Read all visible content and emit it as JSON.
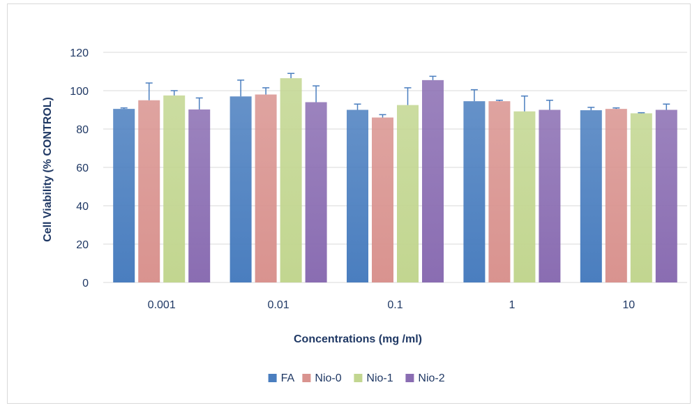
{
  "chart_data": {
    "type": "bar",
    "title": "",
    "xlabel": "Concentrations (mg /ml)",
    "ylabel": "Cell Viability (% CONTROL)",
    "ylim": [
      0,
      120
    ],
    "yticks": [
      0,
      20,
      40,
      60,
      80,
      100,
      120
    ],
    "grid": true,
    "legend_position": "bottom",
    "categories": [
      "0.001",
      "0.01",
      "0.1",
      "1",
      "10"
    ],
    "series": [
      {
        "name": "FA",
        "color": "#4a7ebf",
        "values": [
          90.5,
          97.0,
          90.0,
          94.5,
          89.8
        ],
        "errors": [
          0.5,
          8.5,
          3.0,
          6.0,
          1.5
        ]
      },
      {
        "name": "Nio-0",
        "color": "#d9938f",
        "values": [
          95.0,
          98.0,
          86.0,
          94.5,
          90.5
        ],
        "errors": [
          9.0,
          3.5,
          1.5,
          0.5,
          0.5
        ]
      },
      {
        "name": "Nio-1",
        "color": "#c2d690",
        "values": [
          97.5,
          106.5,
          92.5,
          89.2,
          88.2
        ],
        "errors": [
          2.5,
          2.5,
          9.0,
          8.0,
          0.3
        ]
      },
      {
        "name": "Nio-2",
        "color": "#8a6db2",
        "values": [
          90.2,
          94.0,
          105.5,
          90.0,
          90.0
        ],
        "errors": [
          6.0,
          8.5,
          2.0,
          5.0,
          3.0
        ]
      }
    ]
  }
}
